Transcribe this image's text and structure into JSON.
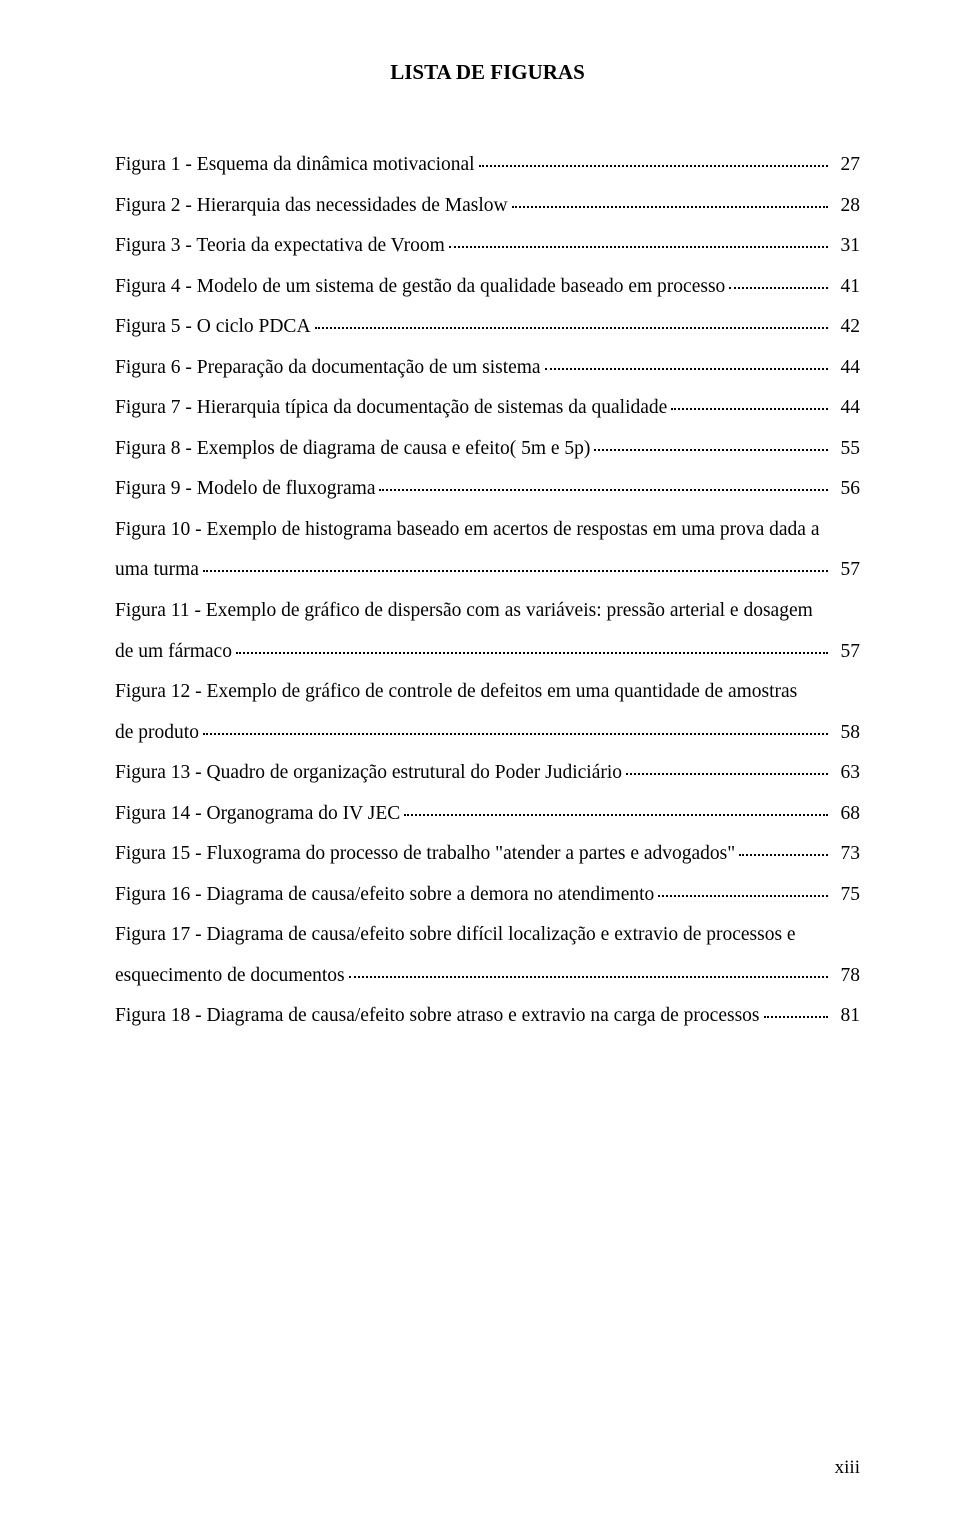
{
  "title": "LISTA DE FIGURAS",
  "entries": [
    {
      "label": "Figura 1  - Esquema da dinâmica motivacional",
      "page": "27"
    },
    {
      "label": "Figura 2  - Hierarquia das necessidades de Maslow",
      "page": "28"
    },
    {
      "label": "Figura 3  - Teoria da expectativa de Vroom",
      "page": "31"
    },
    {
      "label": "Figura 4  - Modelo de um sistema de gestão da qualidade baseado em processo",
      "page": "41"
    },
    {
      "label": "Figura 5  - O ciclo PDCA",
      "page": "42"
    },
    {
      "label": "Figura 6  - Preparação da documentação de um sistema",
      "page": "44"
    },
    {
      "label": "Figura 7  - Hierarquia típica da documentação de sistemas da qualidade",
      "page": "44"
    },
    {
      "label": "Figura 8  - Exemplos de diagrama de causa e efeito( 5m e 5p)",
      "page": "55"
    },
    {
      "label": "Figura 9  - Modelo de fluxograma",
      "page": "56"
    },
    {
      "label": "Figura 10 - Exemplo de histograma baseado em acertos de respostas em uma prova dada a",
      "cont": "uma turma",
      "page": "57"
    },
    {
      "label": "Figura 11 - Exemplo de gráfico de dispersão com as variáveis: pressão arterial e dosagem",
      "cont": "de um fármaco",
      "page": "57"
    },
    {
      "label": "Figura 12 - Exemplo de gráfico de controle de defeitos  em  uma  quantidade  de  amostras",
      "cont": "de produto",
      "page": "58"
    },
    {
      "label": "Figura 13 - Quadro de organização estrutural do Poder Judiciário",
      "page": "63"
    },
    {
      "label": "Figura 14 - Organograma do IV JEC",
      "page": "68"
    },
    {
      "label": "Figura 15 - Fluxograma do processo de trabalho \"atender a partes e advogados\"",
      "page": "73"
    },
    {
      "label": "Figura 16 - Diagrama de causa/efeito sobre a demora no atendimento",
      "page": "75"
    },
    {
      "label": "Figura 17 - Diagrama de causa/efeito sobre difícil localização  e  extravio de processos  e",
      "cont": "esquecimento de documentos",
      "page": "78"
    },
    {
      "label": "Figura 18 - Diagrama de causa/efeito sobre atraso e extravio na carga de processos",
      "page": "81"
    }
  ],
  "page_number": "xiii"
}
